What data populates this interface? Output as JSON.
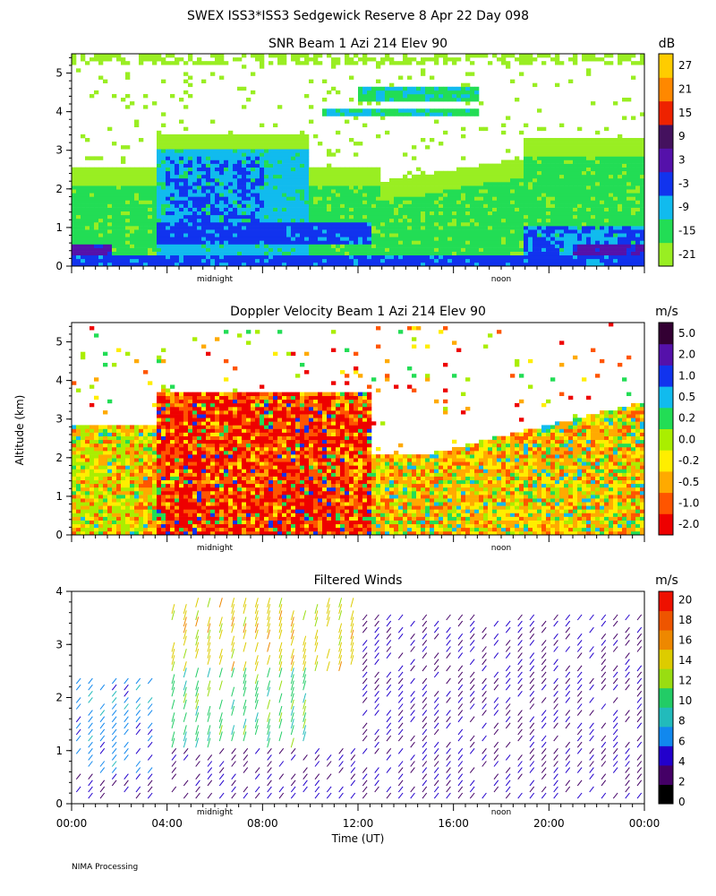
{
  "figure_title": "SWEX ISS3*ISS3 Sedgewick Reserve   8 Apr 22 Day 098",
  "footer": "NIMA Processing",
  "shared_ylabel": "Altitude (km)",
  "xlabel": "Time (UT)",
  "x_ticks": [
    "00:00",
    "04:00",
    "08:00",
    "12:00",
    "16:00",
    "20:00",
    "00:00"
  ],
  "x_markers": [
    "midnight",
    "noon"
  ],
  "panels": {
    "snr": {
      "title": "SNR Beam 1 Azi 214 Elev 90",
      "unit": "dB",
      "y_ticks": [
        "0",
        "1",
        "2",
        "3",
        "4",
        "5"
      ],
      "colorbar": [
        "-21",
        "-15",
        "-9",
        "-3",
        "3",
        "9",
        "15",
        "21",
        "27"
      ]
    },
    "vel": {
      "title": "Doppler Velocity Beam 1 Azi 214 Elev 90",
      "unit": "m/s",
      "y_ticks": [
        "0",
        "1",
        "2",
        "3",
        "4",
        "5"
      ],
      "colorbar": [
        "-2.0",
        "-1.0",
        "-0.5",
        "-0.2",
        "0.0",
        "0.2",
        "0.5",
        "1.0",
        "2.0",
        "5.0"
      ]
    },
    "winds": {
      "title": "Filtered Winds",
      "unit": "m/s",
      "y_ticks": [
        "0",
        "1",
        "2",
        "3",
        "4"
      ],
      "colorbar": [
        "0",
        "2",
        "4",
        "6",
        "8",
        "10",
        "12",
        "14",
        "16",
        "18",
        "20"
      ]
    }
  },
  "colors": {
    "snr_scale": [
      "#99ee22",
      "#22dd55",
      "#11bbee",
      "#1133ee",
      "#5511aa",
      "#44115e",
      "#ee2200",
      "#ff8800",
      "#ffcc00"
    ],
    "vel_scale": [
      "#ee0000",
      "#ff5500",
      "#ffaa00",
      "#ffee00",
      "#aaee00",
      "#22dd55",
      "#11bbee",
      "#1133ee",
      "#5511aa",
      "#330033"
    ],
    "wind_scale": [
      "#000000",
      "#440066",
      "#2200cc",
      "#1188ee",
      "#22bbbb",
      "#22cc66",
      "#99dd11",
      "#ddcc00",
      "#ee8800",
      "#ee5500",
      "#ee1100"
    ]
  },
  "chart_data": [
    {
      "type": "heatmap",
      "title": "SNR Beam 1 Azi 214 Elev 90",
      "ylabel": "Altitude (km)",
      "xlabel": "Time (UT)",
      "xlim": [
        "00:00",
        "24:00"
      ],
      "ylim": [
        0,
        5.5
      ],
      "colorbar_label": "dB",
      "colorbar_range": [
        -21,
        30
      ],
      "features": [
        {
          "hours": [
            0,
            1.5
          ],
          "alt_km": [
            0,
            0.6
          ],
          "snr_db": 6
        },
        {
          "hours": [
            3.5,
            12.5
          ],
          "alt_km": [
            0.5,
            1.2
          ],
          "snr_db": 3
        },
        {
          "hours": [
            3.5,
            10
          ],
          "alt_km": [
            1.0,
            3.3
          ],
          "snr_db": -6
        },
        {
          "hours": [
            19,
            24
          ],
          "alt_km": [
            0.2,
            1.0
          ],
          "snr_db": 3
        },
        {
          "hours": [
            0,
            24
          ],
          "alt_km": [
            1.5,
            3.5
          ],
          "snr_db": -16
        }
      ]
    },
    {
      "type": "heatmap",
      "title": "Doppler Velocity Beam 1 Azi 214 Elev 90",
      "ylabel": "Altitude (km)",
      "xlabel": "Time (UT)",
      "xlim": [
        "00:00",
        "24:00"
      ],
      "ylim": [
        0,
        5.5
      ],
      "colorbar_label": "m/s",
      "colorbar_levels": [
        -2.0,
        -1.0,
        -0.5,
        -0.2,
        0.0,
        0.2,
        0.5,
        1.0,
        2.0,
        5.0
      ],
      "features": [
        {
          "hours": [
            3.5,
            12.5
          ],
          "alt_km": [
            0,
            3.7
          ],
          "vel_ms": -1.5
        },
        {
          "hours": [
            0,
            3.5
          ],
          "alt_km": [
            0,
            2.8
          ],
          "vel_ms": -0.3
        },
        {
          "hours": [
            12.5,
            24
          ],
          "alt_km": [
            0,
            2.5
          ],
          "vel_ms": -0.4
        }
      ]
    },
    {
      "type": "scatter",
      "title": "Filtered Winds",
      "ylabel": "Altitude (km)",
      "xlabel": "Time (UT)",
      "xlim": [
        "00:00",
        "24:00"
      ],
      "ylim": [
        0,
        4
      ],
      "colorbar_label": "m/s",
      "colorbar_range": [
        0,
        21
      ],
      "wind_regimes": [
        {
          "hours": [
            4,
            12
          ],
          "alt_km": [
            2.5,
            3.8
          ],
          "speed_ms": 14
        },
        {
          "hours": [
            4,
            10
          ],
          "alt_km": [
            1.0,
            2.5
          ],
          "speed_ms": 10
        },
        {
          "hours": [
            0,
            3.5
          ],
          "alt_km": [
            0.5,
            2.3
          ],
          "speed_ms": 6
        },
        {
          "hours": [
            0,
            24
          ],
          "alt_km": [
            0,
            1.0
          ],
          "speed_ms": 3
        },
        {
          "hours": [
            12,
            24
          ],
          "alt_km": [
            1.0,
            3.5
          ],
          "speed_ms": 3
        }
      ]
    }
  ]
}
